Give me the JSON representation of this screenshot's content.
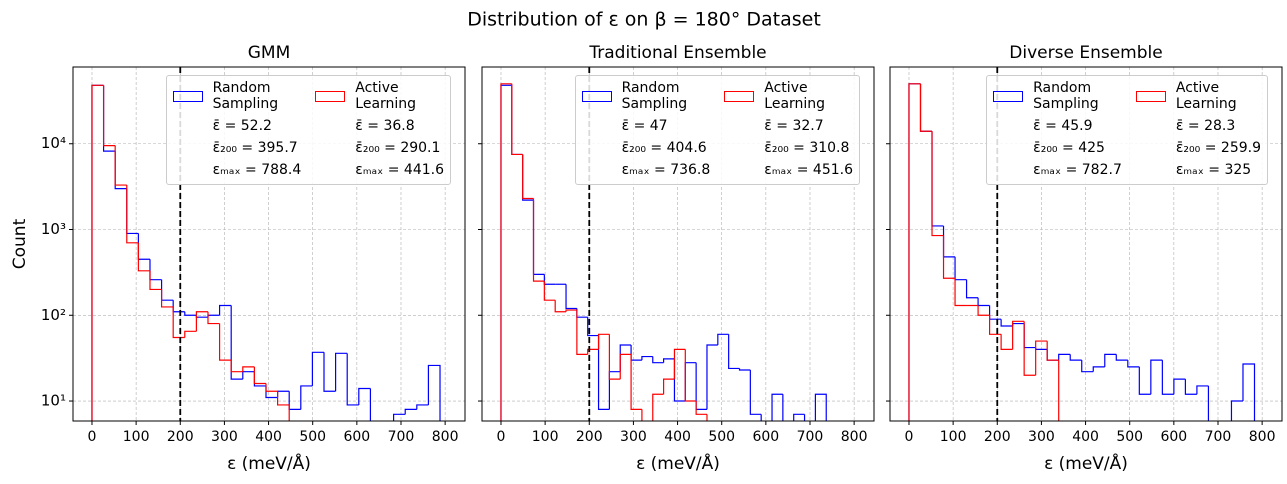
{
  "title": "Distribution of ε on β = 180° Dataset",
  "chart_data": [
    {
      "type": "histogram",
      "title": "GMM",
      "xlabel": "ε (meV/Å)",
      "ylabel": "Count",
      "bins": [
        0,
        26.28,
        52.56,
        78.84,
        105.12,
        131.4,
        157.68,
        183.96,
        210.24,
        236.52,
        262.8,
        289.08,
        315.36,
        341.64,
        367.92,
        394.2,
        420.48,
        446.76,
        473.04,
        499.32,
        525.6,
        551.88,
        578.16,
        604.44,
        630.72,
        657,
        683.28,
        709.56,
        735.84,
        762.12,
        788.4
      ],
      "series": [
        {
          "name": "Random\nSampling",
          "color": "#0000ff",
          "values": [
            48000,
            8200,
            3000,
            900,
            450,
            260,
            150,
            110,
            100,
            95,
            100,
            130,
            18,
            22,
            15,
            11,
            13,
            8,
            15,
            37,
            13,
            36,
            9,
            14,
            0,
            0,
            7,
            8,
            9,
            26
          ],
          "stats": [
            {
              "label": "ε̄ =",
              "value": 52.2
            },
            {
              "label": "ε̄₂₀₀ =",
              "value": 395.7
            },
            {
              "label": "εₘₐₓ =",
              "value": 788.4
            }
          ]
        },
        {
          "name": "Active\nLearning",
          "color": "#ff0000",
          "values": [
            48000,
            9500,
            3300,
            700,
            330,
            200,
            125,
            55,
            65,
            110,
            80,
            30,
            22,
            25,
            16,
            13,
            9,
            0,
            0,
            0,
            0,
            0,
            0,
            0,
            0,
            0,
            0,
            0,
            0,
            0
          ],
          "stats": [
            {
              "label": "ε̄ =",
              "value": 36.8
            },
            {
              "label": "ε̄₂₀₀ =",
              "value": 290.1
            },
            {
              "label": "εₘₐₓ =",
              "value": 441.6
            }
          ]
        }
      ],
      "threshold": 200,
      "xlim": [
        -43,
        845
      ],
      "xticks": [
        0,
        100,
        200,
        300,
        400,
        500,
        600,
        700,
        800
      ],
      "ylim": [
        5.85,
        78500
      ],
      "log_y": true,
      "yticks": [
        {
          "value": 10,
          "label": "10¹"
        },
        {
          "value": 100,
          "label": "10²"
        },
        {
          "value": 1000,
          "label": "10³"
        },
        {
          "value": 10000,
          "label": "10⁴"
        }
      ],
      "grid": true,
      "legend": "upper right"
    },
    {
      "type": "histogram",
      "title": "Traditional Ensemble",
      "xlabel": "ε (meV/Å)",
      "bins": [
        0,
        24.56,
        49.12,
        73.68,
        98.24,
        122.8,
        147.36,
        171.92,
        196.48,
        221.04,
        245.6,
        270.16,
        294.72,
        319.28,
        343.84,
        368.4,
        392.96,
        417.52,
        442.08,
        466.64,
        491.2,
        515.76,
        540.32,
        564.88,
        589.44,
        614,
        638.56,
        663.12,
        687.68,
        712.24,
        736.8
      ],
      "series": [
        {
          "name": "Random\nSampling",
          "color": "#0000ff",
          "values": [
            48000,
            7500,
            2200,
            300,
            230,
            230,
            120,
            95,
            58,
            8,
            22,
            45,
            30,
            33,
            28,
            31,
            10,
            28,
            8,
            45,
            60,
            24,
            23,
            7,
            0,
            12,
            0,
            7,
            0,
            12
          ],
          "stats": [
            {
              "label": "ε̄ =",
              "value": 47.0
            },
            {
              "label": "ε̄₂₀₀ =",
              "value": 404.6
            },
            {
              "label": "εₘₐₓ =",
              "value": 736.8
            }
          ]
        },
        {
          "name": "Active\nLearning",
          "color": "#ff0000",
          "values": [
            50000,
            7500,
            2300,
            250,
            150,
            110,
            115,
            35,
            40,
            60,
            18,
            35,
            8,
            0,
            12,
            18,
            40,
            10,
            7,
            0,
            0,
            0,
            0,
            0,
            0,
            0,
            0,
            0,
            0,
            0
          ],
          "stats": [
            {
              "label": "ε̄ =",
              "value": 32.7
            },
            {
              "label": "ε̄₂₀₀ =",
              "value": 310.8
            },
            {
              "label": "εₘₐₓ =",
              "value": 451.6
            }
          ]
        }
      ],
      "threshold": 200,
      "xlim": [
        -43,
        845
      ],
      "xticks": [
        0,
        100,
        200,
        300,
        400,
        500,
        600,
        700,
        800
      ],
      "ylim": [
        5.85,
        78500
      ],
      "log_y": true,
      "yticks": [
        {
          "value": 10,
          "label": "10¹"
        },
        {
          "value": 100,
          "label": "10²"
        },
        {
          "value": 1000,
          "label": "10³"
        },
        {
          "value": 10000,
          "label": "10⁴"
        }
      ],
      "grid": true,
      "legend": "upper right"
    },
    {
      "type": "histogram",
      "title": "Diverse Ensemble",
      "xlabel": "ε (meV/Å)",
      "bins": [
        0,
        26.09,
        52.18,
        78.27,
        104.36,
        130.45,
        156.54,
        182.63,
        208.72,
        234.81,
        260.9,
        286.99,
        313.08,
        339.17,
        365.26,
        391.35,
        417.44,
        443.53,
        469.62,
        495.71,
        521.8,
        547.89,
        573.98,
        600.07,
        626.16,
        652.25,
        678.34,
        704.43,
        730.52,
        756.61,
        782.7
      ],
      "series": [
        {
          "name": "Random\nSampling",
          "color": "#0000ff",
          "values": [
            50000,
            14000,
            1100,
            480,
            260,
            160,
            130,
            90,
            75,
            80,
            42,
            40,
            30,
            35,
            30,
            22,
            25,
            35,
            30,
            25,
            12,
            30,
            12,
            18,
            12,
            15,
            0,
            0,
            10,
            27
          ],
          "stats": [
            {
              "label": "ε̄ =",
              "value": 45.9
            },
            {
              "label": "ε̄₂₀₀ =",
              "value": 425.0
            },
            {
              "label": "εₘₐₓ =",
              "value": 782.7
            }
          ]
        },
        {
          "name": "Active\nLearning",
          "color": "#ff0000",
          "values": [
            50000,
            14000,
            850,
            270,
            130,
            130,
            100,
            60,
            40,
            85,
            20,
            50,
            30,
            0,
            0,
            0,
            0,
            0,
            0,
            0,
            0,
            0,
            0,
            0,
            0,
            0,
            0,
            0,
            0,
            0
          ],
          "stats": [
            {
              "label": "ε̄ =",
              "value": 28.3
            },
            {
              "label": "ε̄₂₀₀ =",
              "value": 259.9
            },
            {
              "label": "εₘₐₓ =",
              "value": 325.0
            }
          ]
        }
      ],
      "threshold": 200,
      "xlim": [
        -43,
        845
      ],
      "xticks": [
        0,
        100,
        200,
        300,
        400,
        500,
        600,
        700,
        800
      ],
      "ylim": [
        5.85,
        78500
      ],
      "log_y": true,
      "yticks": [
        {
          "value": 10,
          "label": "10¹"
        },
        {
          "value": 100,
          "label": "10²"
        },
        {
          "value": 1000,
          "label": "10³"
        },
        {
          "value": 10000,
          "label": "10⁴"
        }
      ],
      "grid": true,
      "legend": "upper right"
    }
  ]
}
